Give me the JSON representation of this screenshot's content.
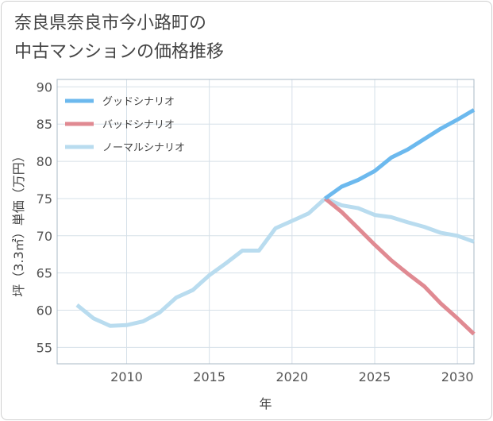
{
  "title_lines": [
    "奈良県奈良市今小路町の",
    "中古マンションの価格推移"
  ],
  "chart_data": {
    "type": "line",
    "xlabel": "年",
    "ylabel": "坪（3.3㎡）単価（万円）",
    "xlim": [
      2005.8,
      2031
    ],
    "ylim": [
      52.8,
      91
    ],
    "x_ticks": [
      2010,
      2015,
      2020,
      2025,
      2030
    ],
    "y_ticks": [
      55,
      60,
      65,
      70,
      75,
      80,
      85,
      90
    ],
    "grid": true,
    "legend_position": "top-left",
    "series": [
      {
        "name": "グッドシナリオ",
        "color": "#6cb9ee",
        "points": [
          [
            2022,
            75.0
          ],
          [
            2023,
            76.6
          ],
          [
            2024,
            77.5
          ],
          [
            2025,
            78.7
          ],
          [
            2026,
            80.5
          ],
          [
            2027,
            81.6
          ],
          [
            2028,
            83.0
          ],
          [
            2029,
            84.4
          ],
          [
            2030,
            85.6
          ],
          [
            2031,
            86.9
          ]
        ]
      },
      {
        "name": "バッドシナリオ",
        "color": "#e08a92",
        "points": [
          [
            2022,
            75.0
          ],
          [
            2023,
            73.2
          ],
          [
            2024,
            71.0
          ],
          [
            2025,
            68.8
          ],
          [
            2026,
            66.7
          ],
          [
            2027,
            64.9
          ],
          [
            2028,
            63.2
          ],
          [
            2029,
            60.9
          ],
          [
            2030,
            58.9
          ],
          [
            2031,
            56.8
          ]
        ]
      },
      {
        "name": "ノーマルシナリオ",
        "color": "#b9dcef",
        "points": [
          [
            2007,
            60.7
          ],
          [
            2008,
            58.9
          ],
          [
            2009,
            57.9
          ],
          [
            2010,
            58.0
          ],
          [
            2011,
            58.5
          ],
          [
            2012,
            59.7
          ],
          [
            2013,
            61.7
          ],
          [
            2014,
            62.7
          ],
          [
            2015,
            64.7
          ],
          [
            2016,
            66.3
          ],
          [
            2017,
            68.0
          ],
          [
            2018,
            68.0
          ],
          [
            2019,
            71.0
          ],
          [
            2020,
            72.0
          ],
          [
            2021,
            73.0
          ],
          [
            2022,
            75.0
          ],
          [
            2023,
            74.1
          ],
          [
            2024,
            73.7
          ],
          [
            2025,
            72.8
          ],
          [
            2026,
            72.5
          ],
          [
            2027,
            71.8
          ],
          [
            2028,
            71.2
          ],
          [
            2029,
            70.4
          ],
          [
            2030,
            70.0
          ],
          [
            2031,
            69.2
          ]
        ]
      }
    ]
  }
}
